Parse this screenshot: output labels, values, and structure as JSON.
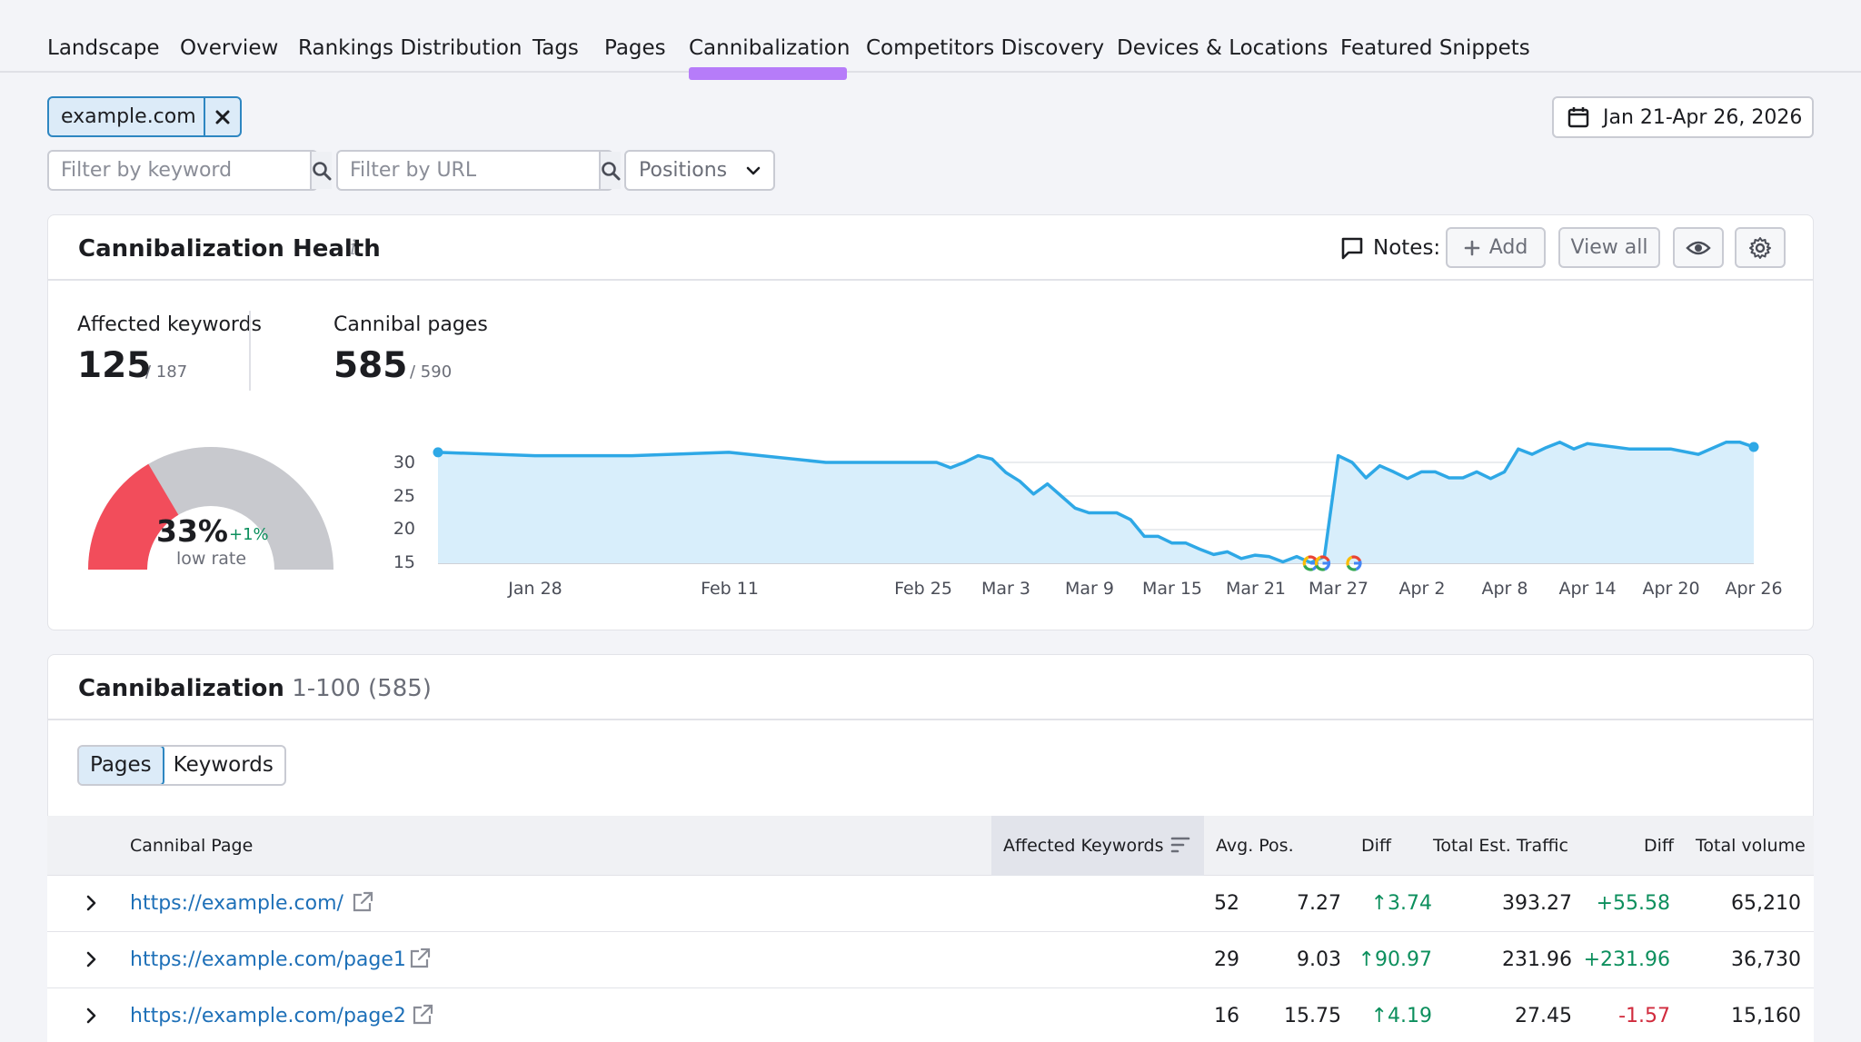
{
  "tabs": [
    {
      "label": "Landscape",
      "active": false
    },
    {
      "label": "Overview",
      "active": false
    },
    {
      "label": "Rankings Distribution",
      "active": false
    },
    {
      "label": "Tags",
      "active": false
    },
    {
      "label": "Pages",
      "active": false
    },
    {
      "label": "Cannibalization",
      "active": true
    },
    {
      "label": "Competitors Discovery",
      "active": false
    },
    {
      "label": "Devices & Locations",
      "active": false
    },
    {
      "label": "Featured Snippets",
      "active": false
    }
  ],
  "domain_chip": "example.com",
  "filters": {
    "keyword_placeholder": "Filter by keyword",
    "url_placeholder": "Filter by URL",
    "positions_label": "Positions"
  },
  "date_range": "Jan 21-Apr 26, 2026",
  "health": {
    "title": "Cannibalization Health",
    "info": "i",
    "notes_label": "Notes:",
    "add_label": "Add",
    "view_all_label": "View all",
    "affected_keywords_label": "Affected keywords",
    "affected_keywords_value": "125",
    "affected_keywords_total": "/ 187",
    "cannibal_pages_label": "Cannibal pages",
    "cannibal_pages_value": "585",
    "cannibal_pages_total": "/ 590",
    "gauge_percent_text": "33%",
    "gauge_fraction": 0.33,
    "gauge_delta": "+1%",
    "gauge_sub": "low rate"
  },
  "colors": {
    "accent_purple": "#b67cf9",
    "line_blue": "#2ea8e6",
    "area_blue": "#d8eefb",
    "gauge_red": "#f24d5b",
    "gauge_gray": "#c8c9ce",
    "positive": "#0c8f5d",
    "negative": "#d12b3d",
    "link": "#1e70b8"
  },
  "chart_data": {
    "type": "area",
    "x_ticks": [
      "Jan 28",
      "Feb 11",
      "Feb 25",
      "Mar 3",
      "Mar 9",
      "Mar 15",
      "Mar 21",
      "Mar 27",
      "Apr 2",
      "Apr 8",
      "Apr 14",
      "Apr 20",
      "Apr 26"
    ],
    "y_ticks": [
      30,
      25,
      20,
      15
    ],
    "ylim": [
      15,
      32
    ],
    "grid": true,
    "annotations": [
      "google-update",
      "google-update",
      "google-update"
    ],
    "series": [
      {
        "x": [
          "Jan 21",
          "Jan 28",
          "Feb 4",
          "Feb 11",
          "Feb 18",
          "Feb 25",
          "Feb 26",
          "Feb 27",
          "Feb 28",
          "Mar 1",
          "Mar 2",
          "Mar 3",
          "Mar 4",
          "Mar 5",
          "Mar 6",
          "Mar 7",
          "Mar 8",
          "Mar 9",
          "Mar 10",
          "Mar 11",
          "Mar 12",
          "Mar 13",
          "Mar 14",
          "Mar 15",
          "Mar 16",
          "Mar 17",
          "Mar 18",
          "Mar 19",
          "Mar 20",
          "Mar 21",
          "Mar 22",
          "Mar 23",
          "Mar 24",
          "Mar 25",
          "Mar 26",
          "Mar 27",
          "Mar 28",
          "Mar 29",
          "Mar 30",
          "Mar 31",
          "Apr 1",
          "Apr 2",
          "Apr 3",
          "Apr 4",
          "Apr 5",
          "Apr 6",
          "Apr 7",
          "Apr 8",
          "Apr 9",
          "Apr 10",
          "Apr 11",
          "Apr 12",
          "Apr 13",
          "Apr 14",
          "Apr 17",
          "Apr 20",
          "Apr 22",
          "Apr 24",
          "Apr 25",
          "Apr 26"
        ],
        "y": [
          31.5,
          31,
          31,
          31.5,
          30,
          30,
          30,
          29.2,
          30,
          31,
          30.5,
          28.5,
          27.2,
          25.3,
          26.8,
          25,
          23.2,
          22.5,
          22.5,
          22.5,
          21.5,
          19,
          19,
          18,
          18,
          17.1,
          16.3,
          16.7,
          15.7,
          16.2,
          16,
          15.2,
          16,
          15.1,
          16,
          31,
          30,
          27.7,
          29.5,
          28.6,
          27.6,
          28.6,
          28.6,
          27.7,
          27.7,
          28.6,
          27.6,
          28.6,
          32,
          31.2,
          32.2,
          33,
          32,
          32.8,
          32,
          32,
          31.2,
          33,
          33,
          32.3
        ]
      }
    ]
  },
  "table": {
    "title": "Cannibalization",
    "range": "1-100 (585)",
    "toggle": [
      "Pages",
      "Keywords"
    ],
    "active_toggle": "Pages",
    "columns": [
      "Cannibal Page",
      "Affected Keywords",
      "Avg. Pos.",
      "Diff",
      "Total Est. Traffic",
      "Diff",
      "Total volume"
    ],
    "rows": [
      {
        "url": "https://example.com/",
        "affected": "52",
        "avg_pos": "7.27",
        "pos_diff": "3.74",
        "traffic": "393.27",
        "traffic_diff": "+55.58",
        "volume": "65,210"
      },
      {
        "url": "https://example.com/page1",
        "affected": "29",
        "avg_pos": "9.03",
        "pos_diff": "90.97",
        "traffic": "231.96",
        "traffic_diff": "+231.96",
        "volume": "36,730"
      },
      {
        "url": "https://example.com/page2",
        "affected": "16",
        "avg_pos": "15.75",
        "pos_diff": "4.19",
        "traffic": "27.45",
        "traffic_diff": "-1.57",
        "volume": "15,160"
      }
    ]
  }
}
